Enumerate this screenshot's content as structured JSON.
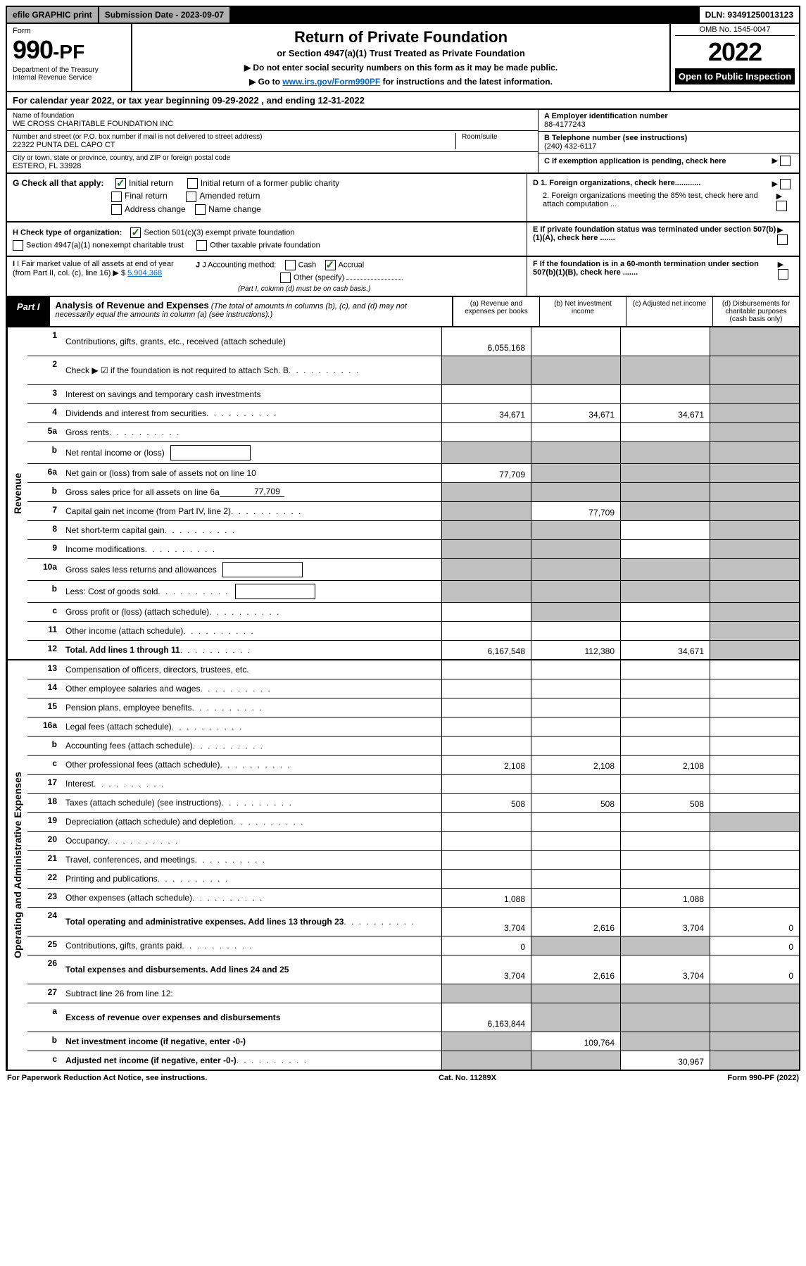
{
  "top_bar": {
    "efile": "efile GRAPHIC print",
    "submission_label": "Submission Date - 2023-09-07",
    "dln": "DLN: 93491250013123"
  },
  "header": {
    "form_label": "Form",
    "form_number": "990-PF",
    "dept": "Department of the Treasury\nInternal Revenue Service",
    "title": "Return of Private Foundation",
    "subtitle": "or Section 4947(a)(1) Trust Treated as Private Foundation",
    "instr1": "▶ Do not enter social security numbers on this form as it may be made public.",
    "instr2_pre": "▶ Go to ",
    "instr2_link": "www.irs.gov/Form990PF",
    "instr2_post": " for instructions and the latest information.",
    "omb": "OMB No. 1545-0047",
    "year": "2022",
    "inspection": "Open to Public Inspection"
  },
  "cal_year": "For calendar year 2022, or tax year beginning 09-29-2022                    , and ending 12-31-2022",
  "foundation": {
    "name_label": "Name of foundation",
    "name": "WE CROSS CHARITABLE FOUNDATION INC",
    "addr_label": "Number and street (or P.O. box number if mail is not delivered to street address)",
    "addr": "22322 PUNTA DEL CAPO CT",
    "room_label": "Room/suite",
    "city_label": "City or town, state or province, country, and ZIP or foreign postal code",
    "city": "ESTERO, FL  33928",
    "ein_label": "A Employer identification number",
    "ein": "88-4177243",
    "phone_label": "B Telephone number (see instructions)",
    "phone": "(240) 432-6117",
    "c_label": "C If exemption application is pending, check here"
  },
  "checks": {
    "g_label": "G Check all that apply:",
    "initial_return": "Initial return",
    "initial_former": "Initial return of a former public charity",
    "final_return": "Final return",
    "amended": "Amended return",
    "addr_change": "Address change",
    "name_change": "Name change",
    "d1": "D 1. Foreign organizations, check here............",
    "d2": "2. Foreign organizations meeting the 85% test, check here and attach computation ...",
    "e_label": "E  If private foundation status was terminated under section 507(b)(1)(A), check here .......",
    "h_label": "H Check type of organization:",
    "h_501c3": "Section 501(c)(3) exempt private foundation",
    "h_4947": "Section 4947(a)(1) nonexempt charitable trust",
    "h_other": "Other taxable private foundation",
    "i_label": "I Fair market value of all assets at end of year (from Part II, col. (c), line 16)",
    "i_value": "5,904,368",
    "j_label": "J Accounting method:",
    "j_cash": "Cash",
    "j_accrual": "Accrual",
    "j_other": "Other (specify)",
    "j_note": "(Part I, column (d) must be on cash basis.)",
    "f_label": "F  If the foundation is in a 60-month termination under section 507(b)(1)(B), check here ......."
  },
  "part1": {
    "label": "Part I",
    "title": "Analysis of Revenue and Expenses",
    "note": "(The total of amounts in columns (b), (c), and (d) may not necessarily equal the amounts in column (a) (see instructions).)",
    "col_a": "(a)   Revenue and expenses per books",
    "col_b": "(b)   Net investment income",
    "col_c": "(c)   Adjusted net income",
    "col_d": "(d)   Disbursements for charitable purposes (cash basis only)"
  },
  "side_labels": {
    "revenue": "Revenue",
    "expenses": "Operating and Administrative Expenses"
  },
  "rows": [
    {
      "n": "1",
      "desc": "Contributions, gifts, grants, etc., received (attach schedule)",
      "a": "6,055,168",
      "b": "",
      "c": "",
      "d": "",
      "d_grey": true,
      "tall": true
    },
    {
      "n": "2",
      "desc": "Check ▶ ☑ if the foundation is not required to attach Sch. B",
      "dots": true,
      "a": "",
      "b": "",
      "c": "",
      "d": "",
      "all_grey": true,
      "b_bold": true,
      "tall": true
    },
    {
      "n": "3",
      "desc": "Interest on savings and temporary cash investments",
      "a": "",
      "b": "",
      "c": "",
      "d": "",
      "d_grey": true
    },
    {
      "n": "4",
      "desc": "Dividends and interest from securities",
      "dots": true,
      "a": "34,671",
      "b": "34,671",
      "c": "34,671",
      "d": "",
      "d_grey": true
    },
    {
      "n": "5a",
      "desc": "Gross rents",
      "dots": true,
      "a": "",
      "b": "",
      "c": "",
      "d": "",
      "d_grey": true
    },
    {
      "n": "b",
      "desc": "Net rental income or (loss)",
      "inline_box": "",
      "a": "",
      "b": "",
      "c": "",
      "d": "",
      "all_grey": true
    },
    {
      "n": "6a",
      "desc": "Net gain or (loss) from sale of assets not on line 10",
      "a": "77,709",
      "b": "",
      "c": "",
      "d": "",
      "bcd_grey": true
    },
    {
      "n": "b",
      "desc": "Gross sales price for all assets on line 6a",
      "underline": "77,709",
      "a": "",
      "b": "",
      "c": "",
      "d": "",
      "all_grey": true
    },
    {
      "n": "7",
      "desc": "Capital gain net income (from Part IV, line 2)",
      "dots": true,
      "a": "",
      "b": "77,709",
      "c": "",
      "d": "",
      "a_grey": true,
      "cd_grey": true
    },
    {
      "n": "8",
      "desc": "Net short-term capital gain",
      "dots": true,
      "a": "",
      "b": "",
      "c": "",
      "d": "",
      "ab_grey": true,
      "d_grey": true
    },
    {
      "n": "9",
      "desc": "Income modifications",
      "dots": true,
      "a": "",
      "b": "",
      "c": "",
      "d": "",
      "ab_grey": true,
      "d_grey": true
    },
    {
      "n": "10a",
      "desc": "Gross sales less returns and allowances",
      "inline_box": "",
      "a": "",
      "b": "",
      "c": "",
      "d": "",
      "all_grey": true
    },
    {
      "n": "b",
      "desc": "Less: Cost of goods sold",
      "dots": true,
      "inline_box": "",
      "a": "",
      "b": "",
      "c": "",
      "d": "",
      "all_grey": true
    },
    {
      "n": "c",
      "desc": "Gross profit or (loss) (attach schedule)",
      "dots": true,
      "a": "",
      "b": "",
      "c": "",
      "d": "",
      "b_grey": true,
      "d_grey": true
    },
    {
      "n": "11",
      "desc": "Other income (attach schedule)",
      "dots": true,
      "a": "",
      "b": "",
      "c": "",
      "d": "",
      "d_grey": true
    },
    {
      "n": "12",
      "desc": "Total. Add lines 1 through 11",
      "dots": true,
      "bold": true,
      "a": "6,167,548",
      "b": "112,380",
      "c": "34,671",
      "d": "",
      "d_grey": true
    }
  ],
  "exp_rows": [
    {
      "n": "13",
      "desc": "Compensation of officers, directors, trustees, etc.",
      "a": "",
      "b": "",
      "c": "",
      "d": ""
    },
    {
      "n": "14",
      "desc": "Other employee salaries and wages",
      "dots": true,
      "a": "",
      "b": "",
      "c": "",
      "d": ""
    },
    {
      "n": "15",
      "desc": "Pension plans, employee benefits",
      "dots": true,
      "a": "",
      "b": "",
      "c": "",
      "d": ""
    },
    {
      "n": "16a",
      "desc": "Legal fees (attach schedule)",
      "dots": true,
      "a": "",
      "b": "",
      "c": "",
      "d": ""
    },
    {
      "n": "b",
      "desc": "Accounting fees (attach schedule)",
      "dots": true,
      "a": "",
      "b": "",
      "c": "",
      "d": ""
    },
    {
      "n": "c",
      "desc": "Other professional fees (attach schedule)",
      "dots": true,
      "a": "2,108",
      "b": "2,108",
      "c": "2,108",
      "d": ""
    },
    {
      "n": "17",
      "desc": "Interest",
      "dots": true,
      "a": "",
      "b": "",
      "c": "",
      "d": ""
    },
    {
      "n": "18",
      "desc": "Taxes (attach schedule) (see instructions)",
      "dots": true,
      "a": "508",
      "b": "508",
      "c": "508",
      "d": ""
    },
    {
      "n": "19",
      "desc": "Depreciation (attach schedule) and depletion",
      "dots": true,
      "a": "",
      "b": "",
      "c": "",
      "d": "",
      "d_grey": true
    },
    {
      "n": "20",
      "desc": "Occupancy",
      "dots": true,
      "a": "",
      "b": "",
      "c": "",
      "d": ""
    },
    {
      "n": "21",
      "desc": "Travel, conferences, and meetings",
      "dots": true,
      "a": "",
      "b": "",
      "c": "",
      "d": ""
    },
    {
      "n": "22",
      "desc": "Printing and publications",
      "dots": true,
      "a": "",
      "b": "",
      "c": "",
      "d": ""
    },
    {
      "n": "23",
      "desc": "Other expenses (attach schedule)",
      "dots": true,
      "a": "1,088",
      "b": "",
      "c": "1,088",
      "d": ""
    },
    {
      "n": "24",
      "desc": "Total operating and administrative expenses. Add lines 13 through 23",
      "dots": true,
      "bold": true,
      "a": "3,704",
      "b": "2,616",
      "c": "3,704",
      "d": "0",
      "tall": true
    },
    {
      "n": "25",
      "desc": "Contributions, gifts, grants paid",
      "dots": true,
      "a": "0",
      "b": "",
      "c": "",
      "d": "0",
      "bc_grey": true
    },
    {
      "n": "26",
      "desc": "Total expenses and disbursements. Add lines 24 and 25",
      "bold": true,
      "a": "3,704",
      "b": "2,616",
      "c": "3,704",
      "d": "0",
      "tall": true
    },
    {
      "n": "27",
      "desc": "Subtract line 26 from line 12:",
      "a": "",
      "b": "",
      "c": "",
      "d": "",
      "all_grey": true
    },
    {
      "n": "a",
      "desc": "Excess of revenue over expenses and disbursements",
      "bold": true,
      "a": "6,163,844",
      "b": "",
      "c": "",
      "d": "",
      "bcd_grey": true,
      "tall": true
    },
    {
      "n": "b",
      "desc": "Net investment income (if negative, enter -0-)",
      "bold": true,
      "a": "",
      "b": "109,764",
      "c": "",
      "d": "",
      "a_grey": true,
      "cd_grey": true
    },
    {
      "n": "c",
      "desc": "Adjusted net income (if negative, enter -0-)",
      "bold": true,
      "dots": true,
      "a": "",
      "b": "",
      "c": "30,967",
      "d": "",
      "ab_grey": true,
      "d_grey": true
    }
  ],
  "footer": {
    "left": "For Paperwork Reduction Act Notice, see instructions.",
    "center": "Cat. No. 11289X",
    "right": "Form 990-PF (2022)"
  }
}
